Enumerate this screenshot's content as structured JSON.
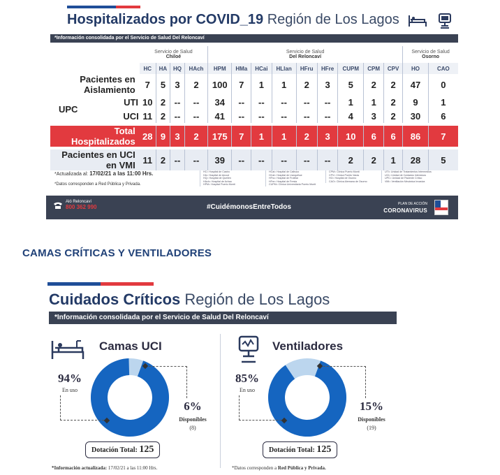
{
  "hospitalized": {
    "title_bold": "Hospitalizados por COVID_19",
    "title_rest": "Región de Los Lagos",
    "info": "*Información consolidada por el Servicio de Salud Del Reloncaví",
    "services": [
      {
        "line1": "Servicio de Salud",
        "line2": "Chiloé"
      },
      {
        "line1": "Servicio de Salud",
        "line2": "Del Reloncaví"
      },
      {
        "line1": "Servicio de Salud",
        "line2": "Osorno"
      }
    ],
    "columns": [
      "HC",
      "HA",
      "HQ",
      "HAch",
      "HPM",
      "HMa",
      "HCai",
      "HLlan",
      "HFru",
      "HFre",
      "CUPM",
      "CPM",
      "CPV",
      "HO",
      "CAO"
    ],
    "rows": {
      "aislamiento": {
        "label": "Pacientes en Aislamiento",
        "values": [
          "7",
          "5",
          "3",
          "2",
          "100",
          "7",
          "1",
          "1",
          "2",
          "3",
          "5",
          "2",
          "2",
          "47",
          "0"
        ]
      },
      "upc_label": "UPC",
      "uti": {
        "label": "UTI",
        "values": [
          "10",
          "2",
          "--",
          "--",
          "34",
          "--",
          "--",
          "--",
          "--",
          "--",
          "1",
          "1",
          "2",
          "9",
          "1"
        ]
      },
      "uci": {
        "label": "UCI",
        "values": [
          "11",
          "2",
          "--",
          "--",
          "41",
          "--",
          "--",
          "--",
          "--",
          "--",
          "4",
          "3",
          "2",
          "30",
          "6"
        ]
      },
      "total": {
        "label": "Total Hospitalizados",
        "values": [
          "28",
          "9",
          "3",
          "2",
          "175",
          "7",
          "1",
          "1",
          "2",
          "3",
          "10",
          "6",
          "6",
          "86",
          "7"
        ]
      },
      "vmi": {
        "label": "Pacientes en UCI en VMI",
        "values": [
          "11",
          "2",
          "--",
          "--",
          "39",
          "--",
          "--",
          "--",
          "--",
          "--",
          "2",
          "2",
          "1",
          "28",
          "5"
        ]
      }
    },
    "updated_label": "*Actualizada al:",
    "updated_value": "17/02/21 a las 11:00 Hrs.",
    "data_note": "*Datos corresponden a Red Pública y Privada.",
    "legend": [
      [
        "HC= Hospital de Castro",
        "HA= Hospital de Ancud",
        "HQ= Hospital de Queilén",
        "HAch= Hospital de Achao",
        "HPM= Hospital Puerto Montt"
      ],
      [
        "HCai= Hospital de Calbuco",
        "HCal= Hospital de Llanquihue",
        "HFru= Hospital de Frutillar",
        "HFre= Hospital de Fresia",
        "CUPM= Clínica Universitaria Puerto Montt"
      ],
      [
        "CPM= Clínica Puerto Montt",
        "CPV= Clínica Puerto Varas",
        "HO= Hospital de Osorno",
        "CAO= Clínica Alemana de Osorno"
      ],
      [
        "UTI= Unidad de Tratamientos Intermedios",
        "UCI= Unidad de Cuidados Intensivos",
        "UPC= Unidad de Paciente Crítico",
        "VMI= Ventilación Mecánica Invasiva"
      ]
    ],
    "footer": {
      "phone_label": "Aló Reloncaví",
      "phone": "800 362 990",
      "hashtag": "#CuidémonosEntreTodos",
      "plan": "PLAN DE ACCIÓN",
      "brand": "CORONAVIRUS"
    }
  },
  "section_heading": "CAMAS CRÍTICAS Y VENTILADORES",
  "critical": {
    "title_bold": "Cuidados Críticos",
    "title_rest": "Región de Los Lagos",
    "info": "*Información consolidada por el Servicio de Salud Del Reloncaví",
    "uci": {
      "title": "Camas UCI",
      "in_use_pct": "94%",
      "in_use_label": "En uso",
      "available_pct": "6%",
      "available_label": "Disponibles",
      "available_count": "(8)",
      "total_label": "Dotación Total:",
      "total_value": "125",
      "fraction_in_use": 0.94
    },
    "vent": {
      "title": "Ventiladores",
      "in_use_pct": "85%",
      "in_use_label": "En uso",
      "available_pct": "15%",
      "available_label": "Disponibles",
      "available_count": "(19)",
      "total_label": "Dotación Total:",
      "total_value": "125",
      "fraction_in_use": 0.85
    },
    "note_updated_bold": "*Información actualizada:",
    "note_updated_value": "17/02/21 a las 11:00 Hrs.",
    "note_data": "*Datos corresponden a",
    "note_data_bold": "Red Pública y Privada.",
    "colors": {
      "used": "#1565c0",
      "free": "#bcd6ee"
    }
  }
}
